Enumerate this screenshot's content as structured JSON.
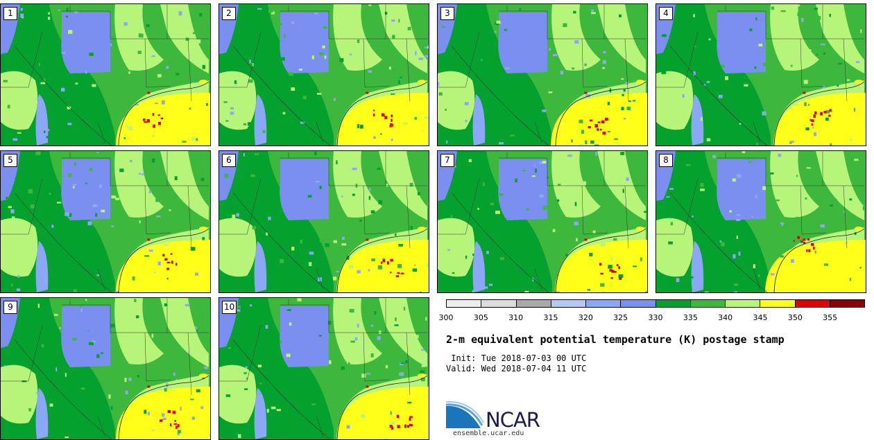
{
  "colors": {
    "c300": "#eeeeee",
    "c305": "#dcdcdc",
    "c310": "#a9a9a9",
    "c315": "#b4c8f5",
    "c320": "#8aa8f5",
    "c325": "#7b8ff0",
    "c330": "#05a12e",
    "c335": "#3db83d",
    "c340": "#b6f57a",
    "c345": "#ffff1a",
    "c350": "#e00000",
    "c355": "#8b0000",
    "land_dark": "#159b2a",
    "border": "#333333"
  },
  "stamps": [
    {
      "label": "1",
      "hot_x": 0.72,
      "hot_y": 0.82,
      "yellow_w": 0.45
    },
    {
      "label": "2",
      "hot_x": 0.78,
      "hot_y": 0.8,
      "yellow_w": 0.44
    },
    {
      "label": "3",
      "hot_x": 0.76,
      "hot_y": 0.85,
      "yellow_w": 0.46
    },
    {
      "label": "4",
      "hot_x": 0.78,
      "hot_y": 0.8,
      "yellow_w": 0.44
    },
    {
      "label": "5",
      "hot_x": 0.79,
      "hot_y": 0.78,
      "yellow_w": 0.45
    },
    {
      "label": "6",
      "hot_x": 0.82,
      "hot_y": 0.82,
      "yellow_w": 0.44
    },
    {
      "label": "7",
      "hot_x": 0.82,
      "hot_y": 0.84,
      "yellow_w": 0.44
    },
    {
      "label": "8",
      "hot_x": 0.7,
      "hot_y": 0.65,
      "yellow_w": 0.48
    },
    {
      "label": "9",
      "hot_x": 0.8,
      "hot_y": 0.85,
      "yellow_w": 0.45
    },
    {
      "label": "10",
      "hot_x": 0.86,
      "hot_y": 0.87,
      "yellow_w": 0.44
    }
  ],
  "colorbar": {
    "ticks": [
      "300",
      "305",
      "310",
      "315",
      "320",
      "325",
      "330",
      "335",
      "340",
      "345",
      "350",
      "355"
    ]
  },
  "title": "2-m equivalent potential temperature (K) postage stamp",
  "init_text": " Init: Tue 2018-07-03 00 UTC",
  "valid_text": "Valid: Wed 2018-07-04 11 UTC",
  "logo": {
    "word": "NCAR",
    "site": "ensemble.ucar.edu",
    "color": "#1b75bb"
  }
}
